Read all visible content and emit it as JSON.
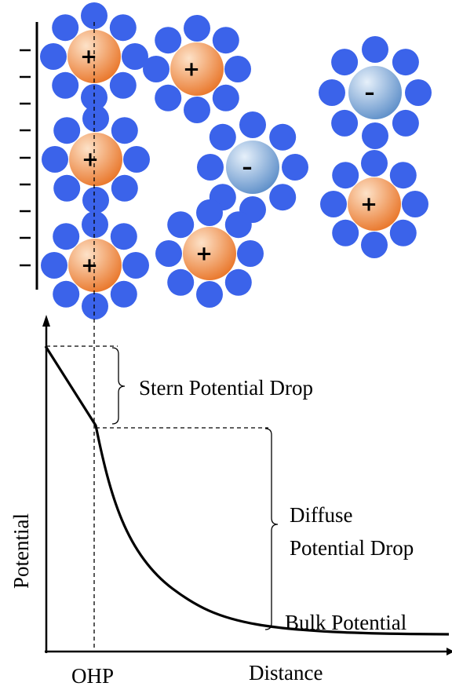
{
  "electrode": {
    "charge_sign": "–",
    "charge_count": 10
  },
  "ions": [
    {
      "id": "ion-1",
      "sign": "+",
      "type": "cation"
    },
    {
      "id": "ion-2",
      "sign": "+",
      "type": "cation"
    },
    {
      "id": "ion-3",
      "sign": "+",
      "type": "cation"
    },
    {
      "id": "ion-4",
      "sign": "+",
      "type": "cation"
    },
    {
      "id": "ion-5",
      "sign": "–",
      "type": "anion"
    },
    {
      "id": "ion-6",
      "sign": "+",
      "type": "cation"
    },
    {
      "id": "ion-7",
      "sign": "–",
      "type": "anion"
    },
    {
      "id": "ion-8",
      "sign": "+",
      "type": "cation"
    }
  ],
  "labels": {
    "stern": "Stern Potential Drop",
    "diffuse_line1": "Diffuse",
    "diffuse_line2": "Potential Drop",
    "bulk": "Bulk Potential",
    "ylabel": "Potential",
    "xlabel": "Distance",
    "ohp": "OHP"
  },
  "colors": {
    "solvent": "#3b63ea",
    "cation_light": "#fde2c8",
    "cation_dark": "#e9762a",
    "anion_light": "#e6f0fa",
    "anion_dark": "#5e8fc9",
    "line": "#000000"
  }
}
